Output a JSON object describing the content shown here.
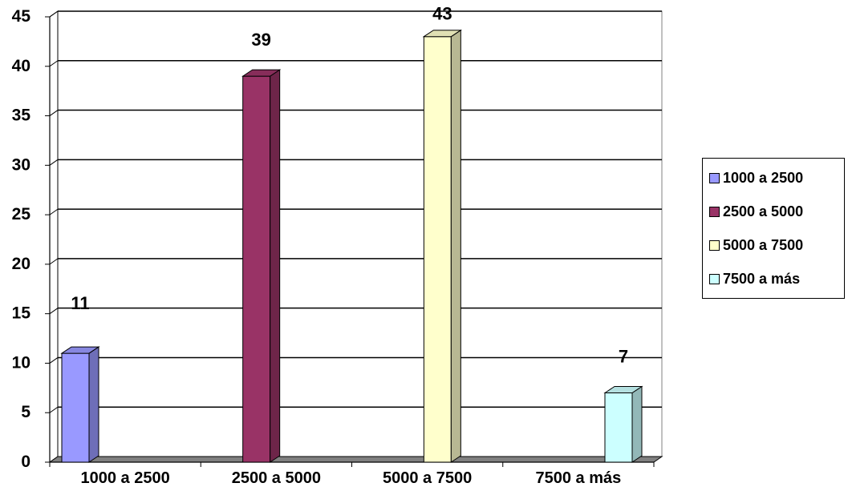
{
  "chart_data": {
    "type": "bar",
    "categories": [
      "1000 a 2500",
      "2500 a 5000",
      "5000 a 7500",
      "7500 a más"
    ],
    "values": [
      11,
      39,
      43,
      7
    ],
    "data_labels": [
      "11",
      "39",
      "43",
      "7"
    ],
    "title": "",
    "xlabel": "",
    "ylabel": "",
    "y_tick_labels": [
      "0",
      "5",
      "10",
      "15",
      "20",
      "25",
      "30",
      "35",
      "40",
      "45"
    ],
    "ylim": [
      0,
      45
    ],
    "grid": true,
    "style": "3d-column",
    "legend_position": "right",
    "colors": [
      "#9999ff",
      "#993366",
      "#ffffcc",
      "#ccffff"
    ]
  },
  "legend": {
    "items": [
      {
        "label": "1000 a 2500",
        "color": "#9999ff"
      },
      {
        "label": "2500 a 5000",
        "color": "#993366"
      },
      {
        "label": "5000 a 7500",
        "color": "#ffffcc"
      },
      {
        "label": "7500 a más",
        "color": "#ccffff"
      }
    ]
  }
}
